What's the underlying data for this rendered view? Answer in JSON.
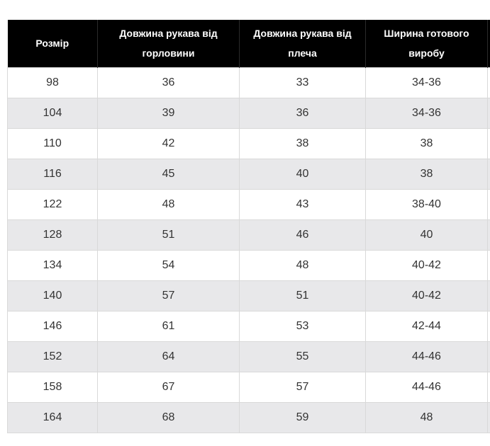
{
  "table": {
    "headers": [
      "Розмір",
      "Довжина рукава від горловини",
      "Довжина рукава від плеча",
      "Ширина готового виробу"
    ],
    "rows": [
      [
        "98",
        "36",
        "33",
        "34-36"
      ],
      [
        "104",
        "39",
        "36",
        "34-36"
      ],
      [
        "110",
        "42",
        "38",
        "38"
      ],
      [
        "116",
        "45",
        "40",
        "38"
      ],
      [
        "122",
        "48",
        "43",
        "38-40"
      ],
      [
        "128",
        "51",
        "46",
        "40"
      ],
      [
        "134",
        "54",
        "48",
        "40-42"
      ],
      [
        "140",
        "57",
        "51",
        "40-42"
      ],
      [
        "146",
        "61",
        "53",
        "42-44"
      ],
      [
        "152",
        "64",
        "55",
        "44-46"
      ],
      [
        "158",
        "67",
        "57",
        "44-46"
      ],
      [
        "164",
        "68",
        "59",
        "48"
      ]
    ]
  }
}
